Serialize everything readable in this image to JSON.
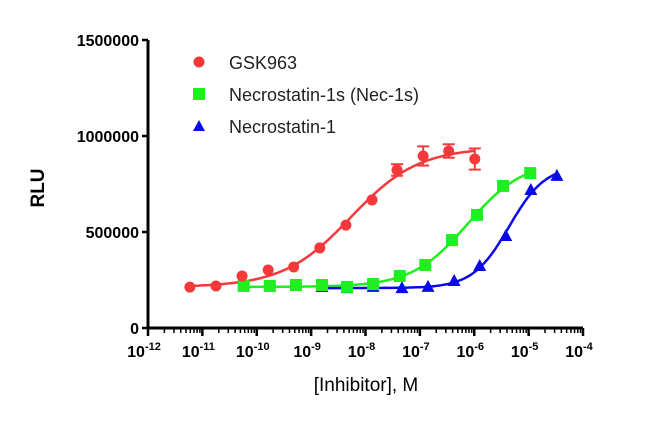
{
  "chart_data": {
    "type": "scatter",
    "title": "",
    "xlabel": "[Inhibitor], M",
    "ylabel": "RLU",
    "xscale": "log10",
    "xlim_log10": [
      -12,
      -4
    ],
    "ylim": [
      0,
      1500000
    ],
    "x_ticks": [
      {
        "base": "10",
        "exp": "-12"
      },
      {
        "base": "10",
        "exp": "-11"
      },
      {
        "base": "10",
        "exp": "-10"
      },
      {
        "base": "10",
        "exp": "-9"
      },
      {
        "base": "10",
        "exp": "-8"
      },
      {
        "base": "10",
        "exp": "-7"
      },
      {
        "base": "10",
        "exp": "-6"
      },
      {
        "base": "10",
        "exp": "-5"
      },
      {
        "base": "10",
        "exp": "-4"
      }
    ],
    "y_ticks": [
      "0",
      "500000",
      "1000000",
      "1500000"
    ],
    "y_tick_values": [
      0,
      500000,
      1000000,
      1500000
    ],
    "legend_position": "top-left",
    "series": [
      {
        "name": "GSK963",
        "color": "#f5393b",
        "marker": "circle",
        "log10_x": [
          -11.23,
          -10.75,
          -10.27,
          -9.79,
          -9.32,
          -8.84,
          -8.36,
          -7.88,
          -7.42,
          -6.94,
          -6.47,
          -5.99
        ],
        "y": [
          213000,
          219000,
          271000,
          302000,
          318000,
          417000,
          536000,
          667000,
          823000,
          896000,
          922000,
          880000
        ],
        "error": [
          0,
          0,
          0,
          0,
          0,
          0,
          0,
          0,
          30000,
          50000,
          35000,
          55000
        ]
      },
      {
        "name": "Necrostatin-1s (Nec-1s)",
        "color": "#1fef1f",
        "marker": "square",
        "log10_x": [
          -10.24,
          -9.76,
          -9.28,
          -8.8,
          -8.34,
          -7.86,
          -7.37,
          -6.9,
          -6.41,
          -5.95,
          -5.47,
          -4.97
        ],
        "y": [
          219000,
          219000,
          224000,
          224000,
          214000,
          229000,
          271000,
          328000,
          458000,
          589000,
          740000,
          807000
        ],
        "error": [
          0,
          0,
          0,
          0,
          0,
          0,
          0,
          0,
          0,
          0,
          0,
          0
        ]
      },
      {
        "name": "Necrostatin-1",
        "color": "#0a0ae8",
        "marker": "triangle",
        "log10_x": [
          -8.8,
          -8.34,
          -7.86,
          -7.33,
          -6.85,
          -6.37,
          -5.9,
          -5.42,
          -4.96,
          -4.48
        ],
        "y": [
          214000,
          208000,
          214000,
          208000,
          214000,
          245000,
          323000,
          479000,
          719000,
          792000
        ],
        "error": [
          0,
          0,
          0,
          0,
          0,
          0,
          0,
          0,
          0,
          0
        ]
      }
    ]
  }
}
